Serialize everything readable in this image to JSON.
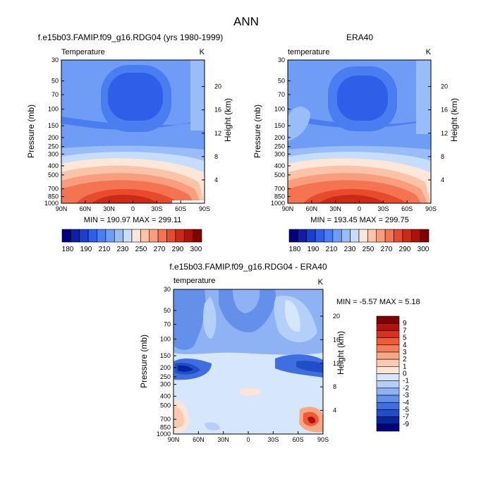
{
  "page_title": "ANN",
  "chart_data": [
    {
      "type": "heatmap",
      "title": "f.e15b03.FAMIP.f09_g16.RDG04 (yrs 1980-1999)",
      "subtitle_left": "Temperature",
      "subtitle_right": "K",
      "ylabel": "Pressure (mb)",
      "y2label": "Height (km)",
      "x_ticks": [
        "90N",
        "60N",
        "30N",
        "0",
        "30S",
        "60S",
        "90S"
      ],
      "y_ticks": [
        "30",
        "50",
        "70",
        "100",
        "150",
        "200",
        "250",
        "300",
        "400",
        "500",
        "700",
        "850",
        "1000"
      ],
      "y2_ticks": [
        "20",
        "16",
        "12",
        "8",
        "4"
      ],
      "min_max_text": "MIN = 190.97   MAX = 299.11",
      "colorbar_labels": [
        "180",
        "190",
        "210",
        "230",
        "250",
        "270",
        "290",
        "300"
      ]
    },
    {
      "type": "heatmap",
      "title": "ERA40",
      "subtitle_left": "temperature",
      "subtitle_right": "K",
      "ylabel": "Pressure (mb)",
      "y2label": "Height (km)",
      "x_ticks": [
        "90N",
        "60N",
        "30N",
        "0",
        "30S",
        "60S",
        "90S"
      ],
      "y_ticks": [
        "30",
        "50",
        "70",
        "100",
        "150",
        "200",
        "250",
        "300",
        "400",
        "500",
        "700",
        "850",
        "1000"
      ],
      "y2_ticks": [
        "20",
        "16",
        "12",
        "8",
        "4"
      ],
      "min_max_text": "MIN = 193.45   MAX = 299.75",
      "colorbar_labels": [
        "180",
        "190",
        "210",
        "230",
        "250",
        "270",
        "290",
        "300"
      ]
    },
    {
      "type": "heatmap",
      "title": "f.e15b03.FAMIP.f09_g16.RDG04 - ERA40",
      "subtitle_left": "temperature",
      "subtitle_right": "K",
      "ylabel": "Pressure (mb)",
      "y2label": "Height (km)",
      "x_ticks": [
        "90N",
        "60N",
        "30N",
        "0",
        "30S",
        "60S",
        "90S"
      ],
      "y_ticks": [
        "30",
        "50",
        "70",
        "100",
        "150",
        "200",
        "250",
        "300",
        "400",
        "500",
        "700",
        "850",
        "1000"
      ],
      "y2_ticks": [
        "20",
        "16",
        "12",
        "8",
        "4"
      ],
      "min_max_text": "MIN =   -5.57   MAX =    5.18",
      "colorbar_labels": [
        "9",
        "7",
        "5",
        "4",
        "3",
        "2",
        "1",
        "0",
        "-1",
        "-2",
        "-3",
        "-4",
        "-5",
        "-7",
        "-9"
      ]
    }
  ],
  "colors": {
    "abs_scale": [
      "#00007f",
      "#0d1fa8",
      "#1a3fd0",
      "#2f5fe8",
      "#4a7ef0",
      "#6f9df5",
      "#98bdf8",
      "#c6ddfb",
      "#fde7d8",
      "#fbc4a8",
      "#f89e7c",
      "#f47451",
      "#e84a2c",
      "#cc2a16",
      "#a8140a",
      "#7f0000"
    ],
    "diff_scale": [
      "#7f0000",
      "#b0130e",
      "#d8321c",
      "#f05a36",
      "#f58057",
      "#f9a886",
      "#fbc9b0",
      "#fde5d6",
      "#d6e6fc",
      "#b4cff8",
      "#8eb2f3",
      "#6590ea",
      "#3f6ee0",
      "#1f4ec8",
      "#07259c",
      "#00007f"
    ]
  }
}
